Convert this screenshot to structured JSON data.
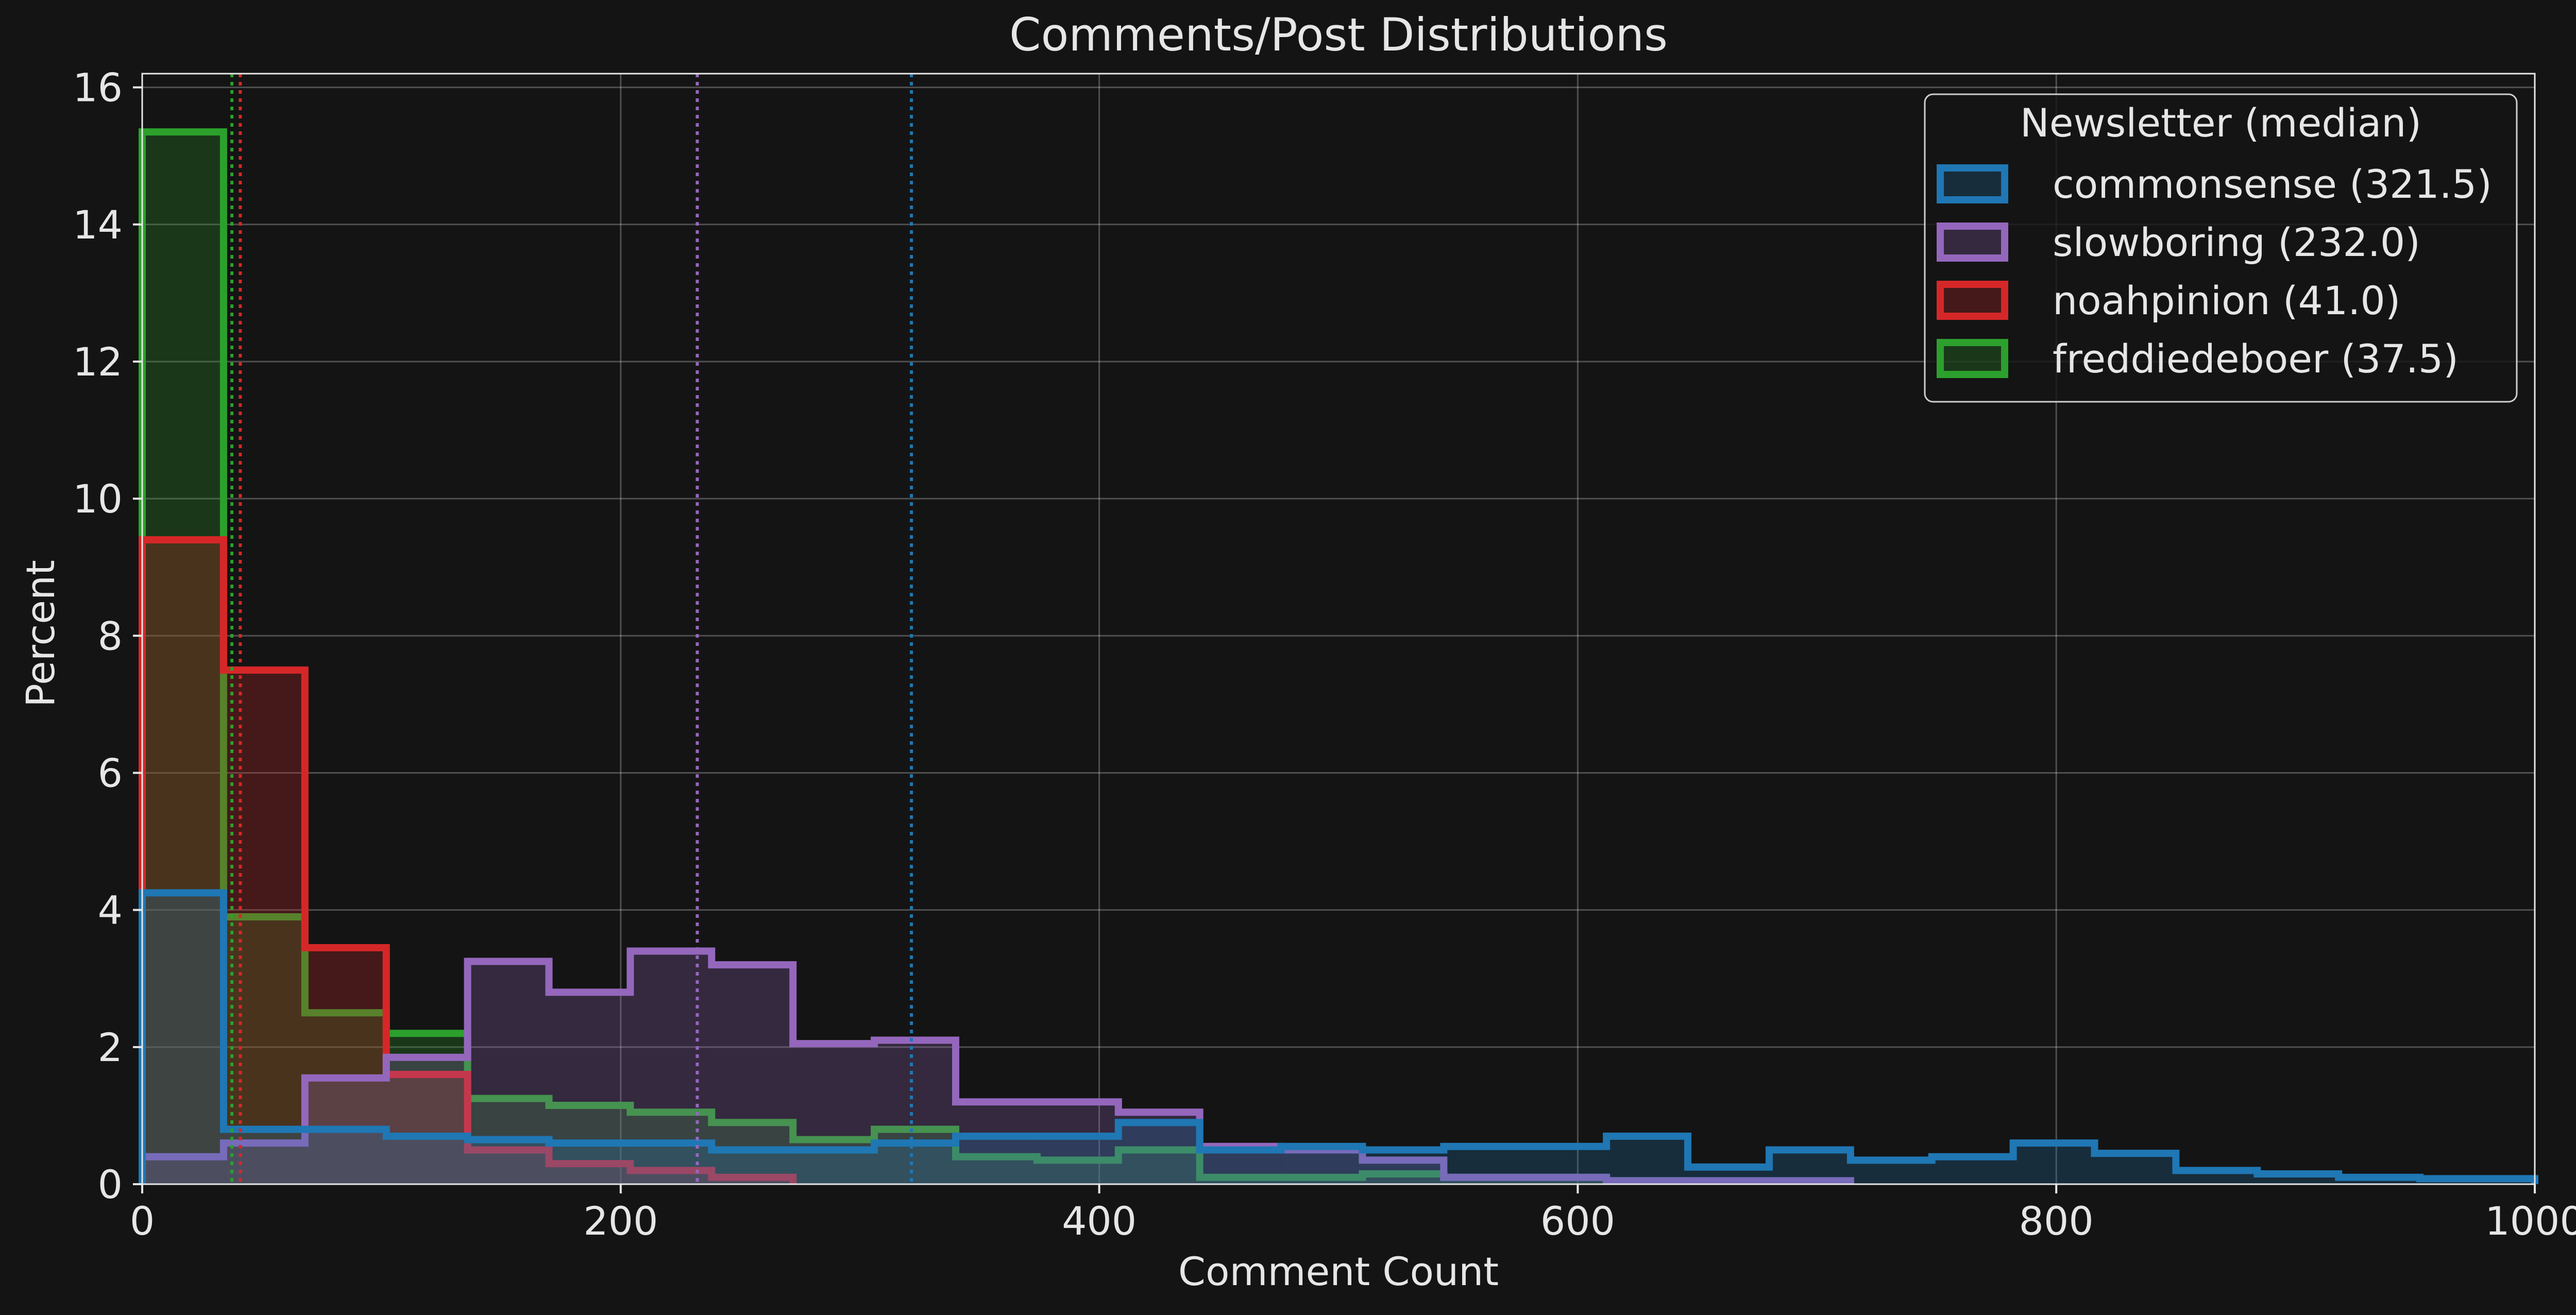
{
  "chart_data": {
    "type": "histogram",
    "title": "Comments/Post Distributions",
    "xlabel": "Comment Count",
    "ylabel": "Percent",
    "xlim": [
      0,
      1000
    ],
    "ylim": [
      0,
      16.2
    ],
    "xticks": [
      0,
      200,
      400,
      600,
      800,
      1000
    ],
    "yticks": [
      0,
      2,
      4,
      6,
      8,
      10,
      12,
      14,
      16
    ],
    "grid": true,
    "legend": {
      "title": "Newsletter (median)",
      "position": "top-right"
    },
    "series": [
      {
        "name": "commonsense (321.5)",
        "color": "#1f77b4",
        "median": 321.5,
        "edges": [
          0,
          34,
          68,
          102,
          136,
          170,
          204,
          238,
          272,
          306,
          340,
          374,
          408,
          442,
          476,
          510,
          544,
          578,
          612,
          646,
          680,
          714,
          748,
          782,
          816,
          850,
          884,
          918,
          952,
          1000
        ],
        "values": [
          4.25,
          0.8,
          0.8,
          0.7,
          0.65,
          0.6,
          0.6,
          0.5,
          0.5,
          0.6,
          0.7,
          0.7,
          0.9,
          0.5,
          0.55,
          0.5,
          0.55,
          0.55,
          0.7,
          0.25,
          0.5,
          0.35,
          0.4,
          0.6,
          0.45,
          0.2,
          0.15,
          0.1,
          0.08
        ]
      },
      {
        "name": "slowboring (232.0)",
        "color": "#9467bd",
        "median": 232.0,
        "edges": [
          0,
          34,
          68,
          102,
          136,
          170,
          204,
          238,
          272,
          306,
          340,
          374,
          408,
          442,
          476,
          510,
          544,
          578,
          612,
          646,
          680,
          714
        ],
        "values": [
          0.4,
          0.6,
          1.55,
          1.85,
          3.25,
          2.8,
          3.4,
          3.2,
          2.05,
          2.1,
          1.2,
          1.2,
          1.05,
          0.55,
          0.5,
          0.35,
          0.1,
          0.1,
          0.05,
          0.05,
          0.05
        ]
      },
      {
        "name": "noahpinion (41.0)",
        "color": "#d62728",
        "median": 41.0,
        "edges": [
          0,
          34,
          68,
          102,
          136,
          170,
          204,
          238,
          272
        ],
        "values": [
          9.4,
          7.5,
          3.45,
          1.6,
          0.5,
          0.3,
          0.2,
          0.1
        ]
      },
      {
        "name": "freddiedeboer (37.5)",
        "color": "#2ca02c",
        "median": 37.5,
        "edges": [
          0,
          34,
          68,
          102,
          136,
          170,
          204,
          238,
          272,
          306,
          340,
          374,
          408,
          442,
          476,
          510,
          544,
          578,
          612,
          646
        ],
        "values": [
          15.35,
          3.9,
          2.5,
          2.2,
          1.25,
          1.15,
          1.05,
          0.9,
          0.65,
          0.8,
          0.4,
          0.35,
          0.5,
          0.1,
          0.1,
          0.15,
          0.1,
          0.1,
          0.05
        ]
      }
    ]
  }
}
